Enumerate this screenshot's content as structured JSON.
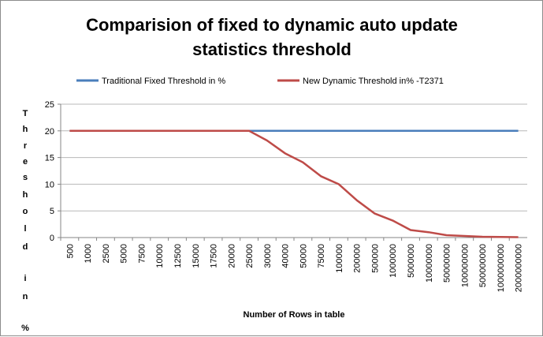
{
  "chart_data": {
    "type": "line",
    "title": "Comparision of fixed to dynamic auto update statistics threshold",
    "title_lines": [
      "Comparision of fixed to dynamic auto update",
      "statistics threshold"
    ],
    "xlabel": "Number of Rows in table",
    "ylabel": "Threshold in %",
    "ylim": [
      0,
      25
    ],
    "yticks": [
      0,
      5,
      10,
      15,
      20,
      25
    ],
    "grid": true,
    "legend_position": "top",
    "categories": [
      "500",
      "1000",
      "2500",
      "5000",
      "7500",
      "10000",
      "12500",
      "15000",
      "17500",
      "20000",
      "25000",
      "30000",
      "40000",
      "50000",
      "75000",
      "100000",
      "200000",
      "500000",
      "1000000",
      "5000000",
      "10000000",
      "50000000",
      "100000000",
      "500000000",
      "1000000000",
      "2000000000"
    ],
    "series": [
      {
        "name": "Traditional Fixed Threshold in %",
        "color": "#4a7ebb",
        "values": [
          20,
          20,
          20,
          20,
          20,
          20,
          20,
          20,
          20,
          20,
          20,
          20,
          20,
          20,
          20,
          20,
          20,
          20,
          20,
          20,
          20,
          20,
          20,
          20,
          20,
          20
        ]
      },
      {
        "name": "New Dynamic Threshold in% -T2371",
        "color": "#be4b48",
        "values": [
          20,
          20,
          20,
          20,
          20,
          20,
          20,
          20,
          20,
          20,
          20,
          18.2,
          15.8,
          14.1,
          11.5,
          10,
          7,
          4.5,
          3.2,
          1.4,
          1,
          0.45,
          0.3,
          0.15,
          0.1,
          0.07
        ]
      }
    ]
  }
}
